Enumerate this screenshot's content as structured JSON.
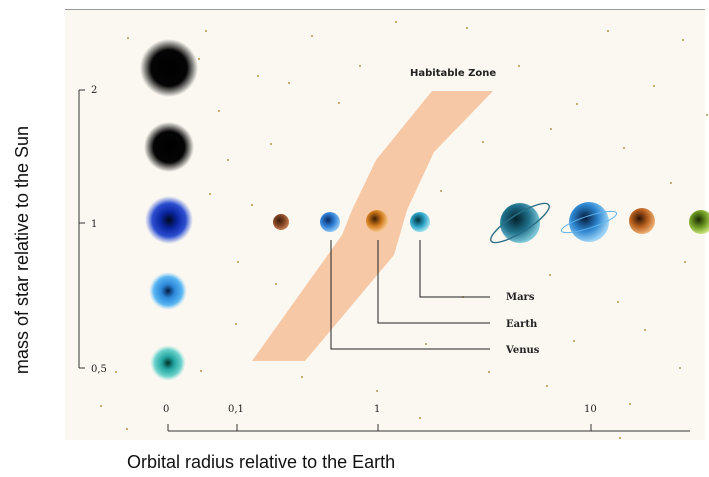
{
  "labels": {
    "y_title": "mass of star relative to the Sun",
    "x_title": "Orbital radius relative to the Earth",
    "zone": "Habitable Zone"
  },
  "y_ticks": [
    "2",
    "1",
    "0,5"
  ],
  "x_ticks": [
    "0",
    "0,1",
    "1",
    "10"
  ],
  "planet_labels": [
    "Mars",
    "Earth",
    "Venus"
  ],
  "colors": {
    "zone": "#f7c8a6",
    "star_black": "#000000",
    "star_blue_dark": "#0b2fae",
    "star_blue": "#3b9fe8",
    "star_teal": "#2fb6b0"
  }
}
